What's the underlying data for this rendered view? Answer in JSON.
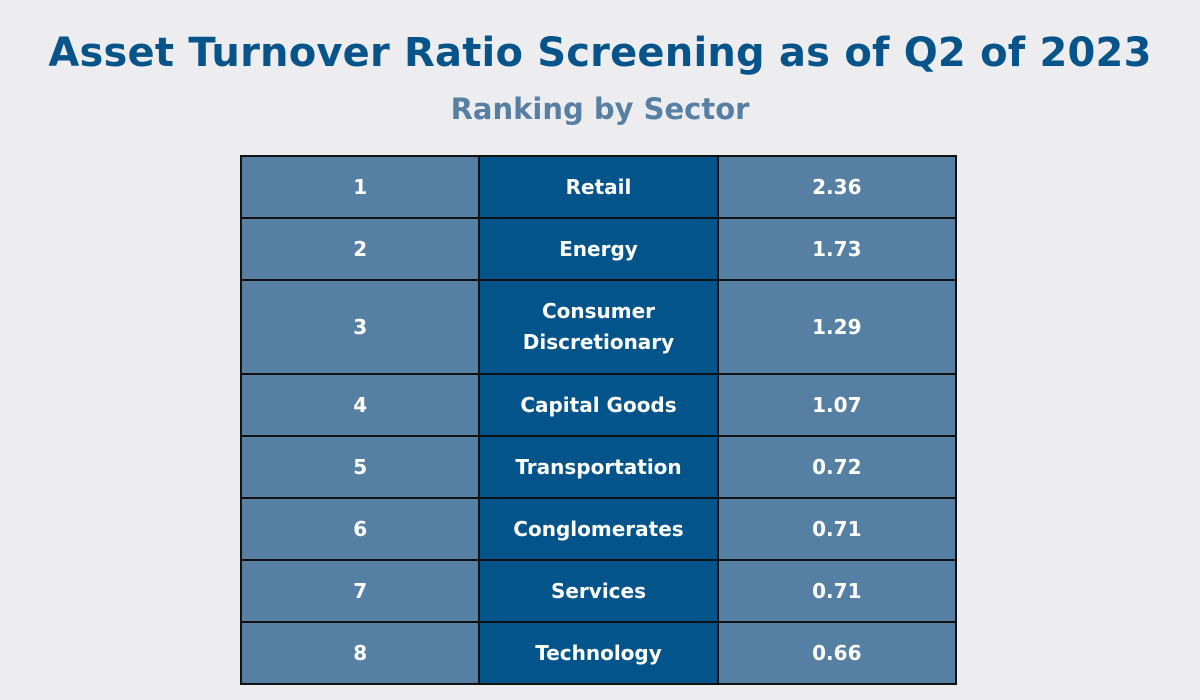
{
  "title": "Asset Turnover Ratio Screening as of Q2 of 2023",
  "subtitle": "Ranking by Sector",
  "colors": {
    "background": "#ededf0",
    "title": "#06548a",
    "subtitle": "#567fa3",
    "cell_light": "#5680a3",
    "cell_dark": "#02548a",
    "text": "#ffffff"
  },
  "chart_data": {
    "type": "table",
    "title": "Asset Turnover Ratio Screening as of Q2 of 2023",
    "subtitle": "Ranking by Sector",
    "rows": [
      {
        "rank": "1",
        "sector": "Retail",
        "value": "2.36"
      },
      {
        "rank": "2",
        "sector": "Energy",
        "value": "1.73"
      },
      {
        "rank": "3",
        "sector": "Consumer Discretionary",
        "value": "1.29"
      },
      {
        "rank": "4",
        "sector": "Capital Goods",
        "value": "1.07"
      },
      {
        "rank": "5",
        "sector": "Transportation",
        "value": "0.72"
      },
      {
        "rank": "6",
        "sector": "Conglomerates",
        "value": "0.71"
      },
      {
        "rank": "7",
        "sector": "Services",
        "value": "0.71"
      },
      {
        "rank": "8",
        "sector": "Technology",
        "value": "0.66"
      }
    ]
  }
}
